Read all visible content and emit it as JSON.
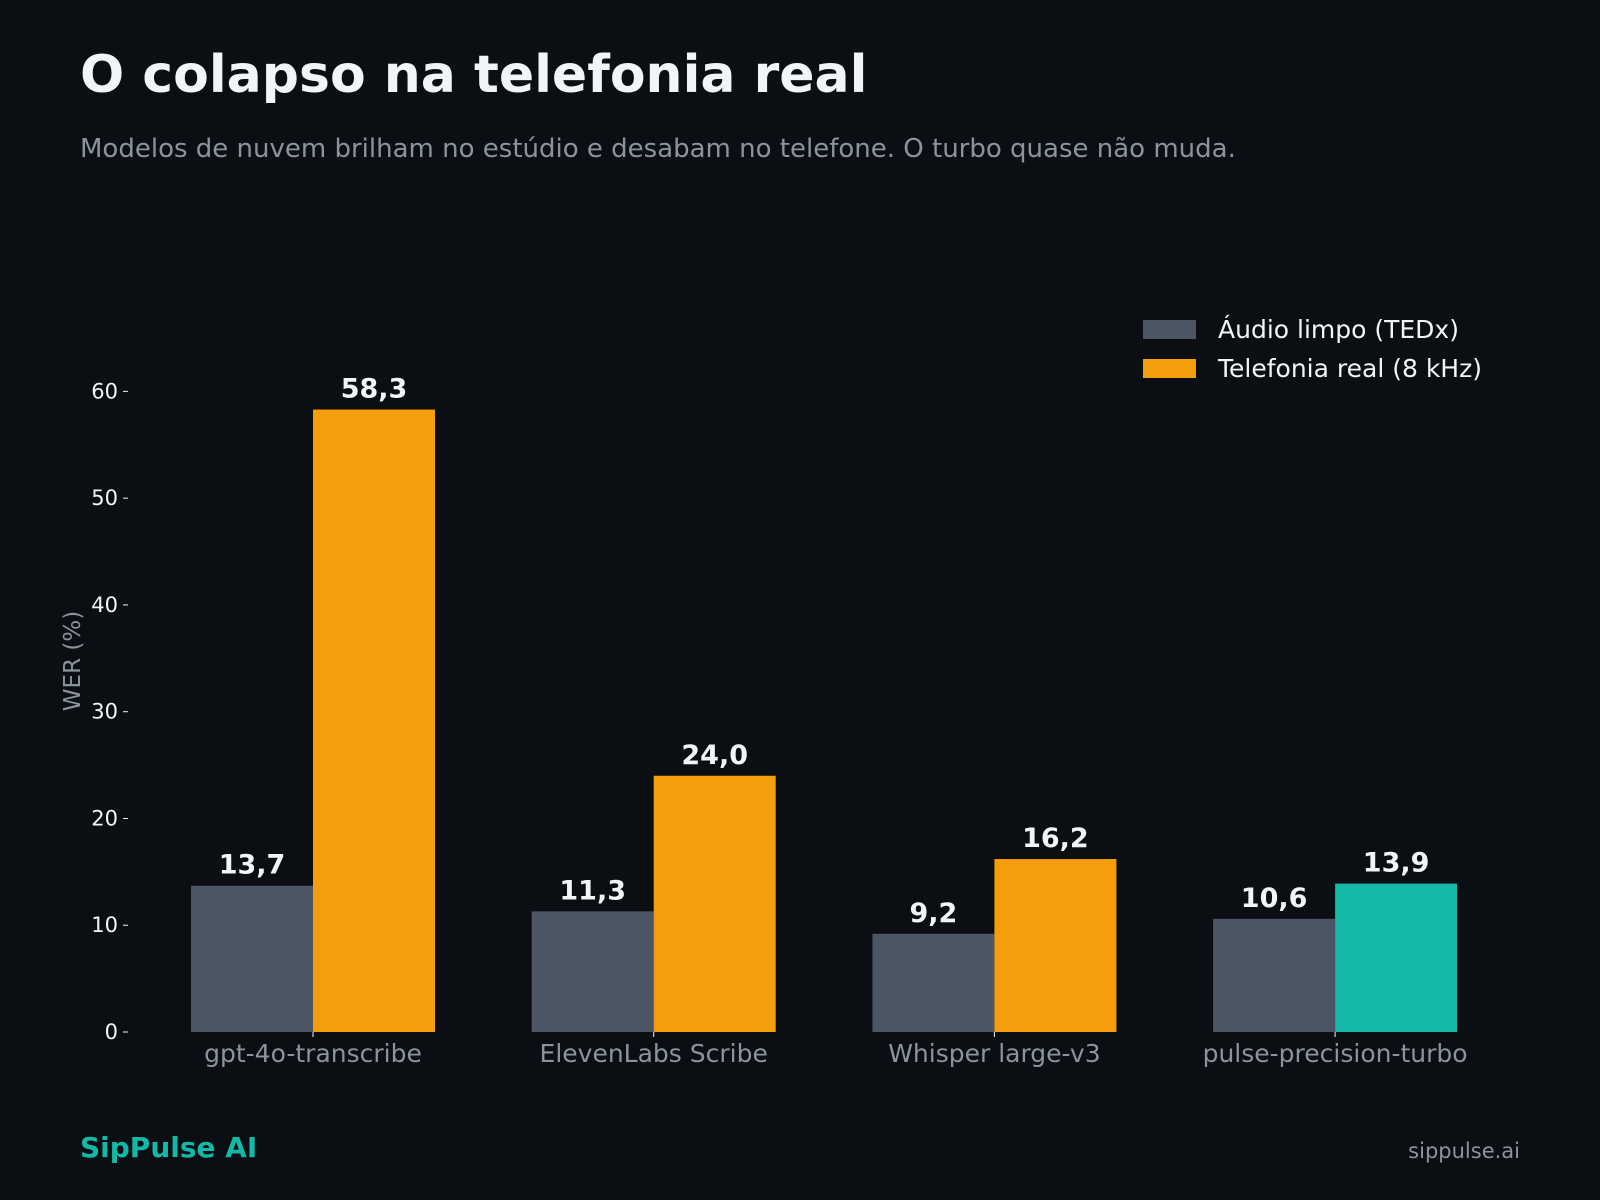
{
  "header": {
    "title": "O colapso na telefonia real",
    "subtitle": "Modelos de nuvem brilham no estúdio e desabam no telefone. O turbo quase não muda."
  },
  "legend": [
    {
      "label": "Áudio limpo (TEDx)",
      "color": "#4b5563"
    },
    {
      "label": "Telefonia real (8 kHz)",
      "color": "#f59e0b"
    }
  ],
  "chart_data": {
    "type": "bar",
    "title": "O colapso na telefonia real",
    "subtitle": "Modelos de nuvem brilham no estúdio e desabam no telefone. O turbo quase não muda.",
    "xlabel": "",
    "ylabel": "WER (%)",
    "ylim": [
      0,
      65
    ],
    "yticks": [
      0,
      10,
      20,
      30,
      40,
      50,
      60
    ],
    "grid": false,
    "legend_position": "top-right",
    "categories": [
      "gpt-4o-transcribe",
      "ElevenLabs Scribe",
      "Whisper large-v3",
      "pulse-precision-turbo"
    ],
    "series": [
      {
        "name": "Áudio limpo (TEDx)",
        "values": [
          13.7,
          11.3,
          9.2,
          10.6
        ],
        "labels": [
          "13,7",
          "11,3",
          "9,2",
          "10,6"
        ],
        "color": "#4b5563"
      },
      {
        "name": "Telefonia real (8 kHz)",
        "values": [
          58.3,
          24.0,
          16.2,
          13.9
        ],
        "labels": [
          "58,3",
          "24,0",
          "16,2",
          "13,9"
        ],
        "color": "#f59e0b",
        "highlight": {
          "index": 3,
          "color": "#14b8a6"
        }
      }
    ]
  },
  "footer": {
    "brand": "SipPulse AI",
    "site": "sippulse.ai"
  },
  "colors": {
    "background": "#0b0e12",
    "text": "#f3f4f6",
    "muted": "#8b949e",
    "accent": "#14b8a6",
    "clean_bar": "#4b5563",
    "phone_bar": "#f59e0b"
  }
}
